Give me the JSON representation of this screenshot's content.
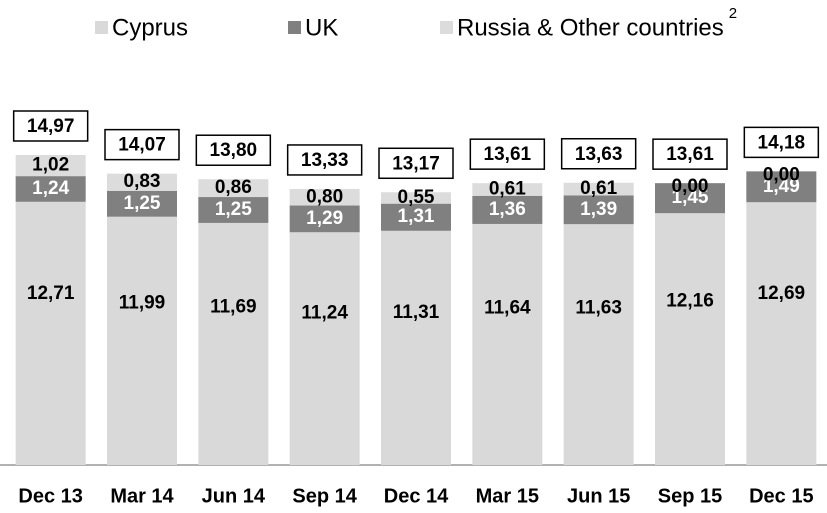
{
  "chart_data": {
    "type": "stacked_bar",
    "categories": [
      "Dec 13",
      "Mar 14",
      "Jun 14",
      "Sep 14",
      "Dec 14",
      "Mar 15",
      "Jun 15",
      "Sep 15",
      "Dec 15"
    ],
    "series": [
      {
        "name": "Cyprus",
        "color": "#d9d9d9",
        "label_color": "#000000",
        "values": [
          12.71,
          11.99,
          11.69,
          11.24,
          11.31,
          11.64,
          11.63,
          12.16,
          12.69
        ],
        "value_labels": [
          "12,71",
          "11,99",
          "11,69",
          "11,24",
          "11,31",
          "11,64",
          "11,63",
          "12,16",
          "12,69"
        ]
      },
      {
        "name": "UK",
        "color": "#808080",
        "label_color": "#ffffff",
        "values": [
          1.24,
          1.25,
          1.25,
          1.29,
          1.31,
          1.36,
          1.39,
          1.45,
          1.49
        ],
        "value_labels": [
          "1,24",
          "1,25",
          "1,25",
          "1,29",
          "1,31",
          "1,36",
          "1,39",
          "1,45",
          "1,49"
        ]
      },
      {
        "name": "Russia & Other countries",
        "color": "#dcdcdc",
        "label_color": "#000000",
        "values": [
          1.02,
          0.83,
          0.86,
          0.8,
          0.55,
          0.61,
          0.61,
          0.0,
          0.0
        ],
        "value_labels": [
          "1,02",
          "0,83",
          "0,86",
          "0,80",
          "0,55",
          "0,61",
          "0,61",
          "0,00",
          "0,00"
        ]
      }
    ],
    "legend_footnote": "2",
    "totals": [
      14.97,
      14.07,
      13.8,
      13.33,
      13.17,
      13.61,
      13.63,
      13.61,
      14.18
    ],
    "total_labels": [
      "14,97",
      "14,07",
      "13,80",
      "13,33",
      "13,17",
      "13,61",
      "13,63",
      "13,61",
      "14,18"
    ]
  }
}
